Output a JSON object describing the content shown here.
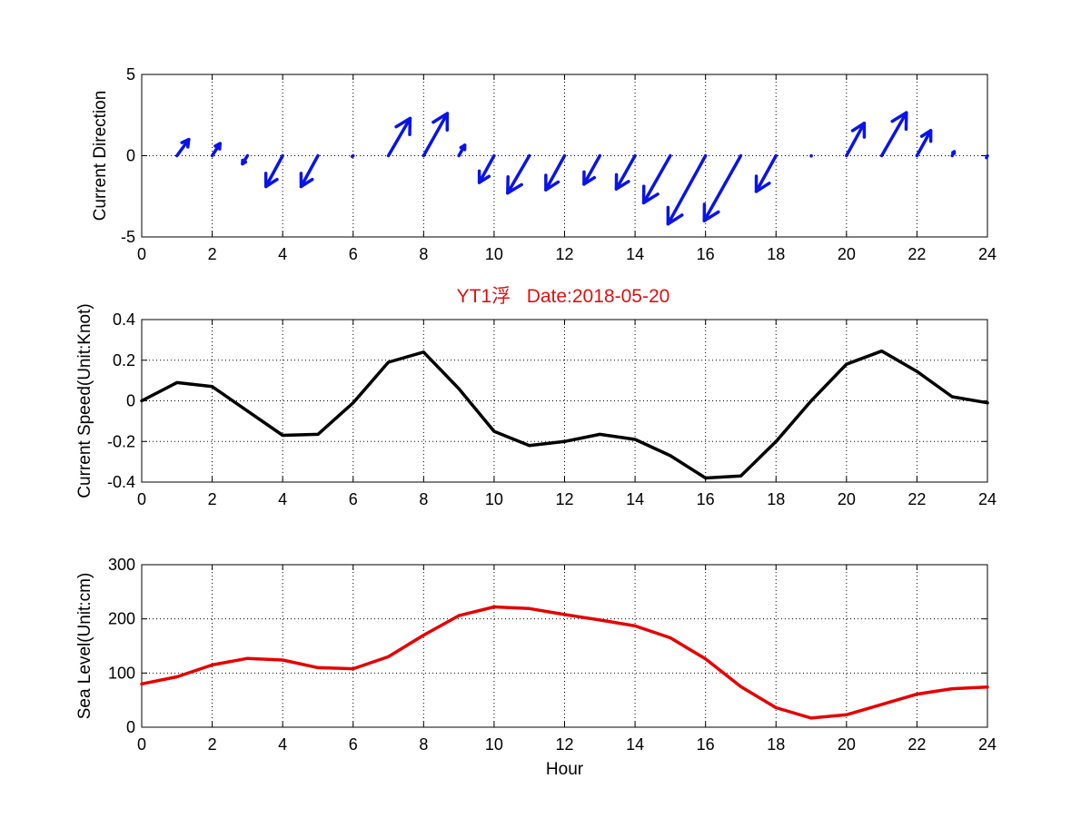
{
  "figure_title": "YT1浮   Date:2018-05-20",
  "colors": {
    "title": "#e01010",
    "quiver": "#0a14e6",
    "speed": "#000000",
    "sea_level": "#e60000"
  },
  "chart_data": [
    {
      "type": "quiver",
      "ylabel": "Current Direction",
      "xlabel": "",
      "xlim": [
        0,
        24
      ],
      "ylim": [
        -5,
        5
      ],
      "xticks": [
        0,
        2,
        4,
        6,
        8,
        10,
        12,
        14,
        16,
        18,
        20,
        22,
        24
      ],
      "yticks": [
        -5,
        0,
        5
      ],
      "grid": true,
      "x": [
        1,
        2,
        3,
        4,
        5,
        6,
        7,
        8,
        9,
        10,
        11,
        12,
        13,
        14,
        15,
        16,
        17,
        18,
        19,
        20,
        21,
        22,
        23,
        24
      ],
      "u": [
        0.12,
        0.08,
        -0.05,
        -0.17,
        -0.17,
        -0.01,
        0.22,
        0.24,
        0.06,
        -0.15,
        -0.22,
        -0.19,
        -0.16,
        -0.19,
        -0.27,
        -0.38,
        -0.37,
        -0.2,
        0.0,
        0.18,
        0.25,
        0.14,
        0.02,
        -0.01
      ],
      "v": [
        1.0,
        0.75,
        -0.5,
        -1.9,
        -1.9,
        -0.05,
        2.3,
        2.6,
        0.65,
        -1.65,
        -2.3,
        -2.1,
        -1.75,
        -2.05,
        -2.9,
        -4.2,
        -4.0,
        -2.2,
        -0.02,
        2.0,
        2.65,
        1.55,
        0.25,
        -0.12
      ]
    },
    {
      "type": "line",
      "ylabel": "Current Speed(Unit:Knot)",
      "xlabel": "",
      "xlim": [
        0,
        24
      ],
      "ylim": [
        -0.4,
        0.4
      ],
      "xticks": [
        0,
        2,
        4,
        6,
        8,
        10,
        12,
        14,
        16,
        18,
        20,
        22,
        24
      ],
      "yticks": [
        -0.4,
        -0.2,
        0,
        0.2,
        0.4
      ],
      "grid": true,
      "x": [
        0,
        1,
        2,
        3,
        4,
        5,
        6,
        7,
        8,
        9,
        10,
        11,
        12,
        13,
        14,
        15,
        16,
        17,
        18,
        19,
        20,
        21,
        22,
        23,
        24
      ],
      "y": [
        0.0,
        0.09,
        0.07,
        -0.05,
        -0.17,
        -0.165,
        -0.01,
        0.19,
        0.24,
        0.06,
        -0.15,
        -0.22,
        -0.2,
        -0.165,
        -0.19,
        -0.27,
        -0.38,
        -0.37,
        -0.2,
        0.0,
        0.18,
        0.245,
        0.145,
        0.02,
        -0.01
      ]
    },
    {
      "type": "line",
      "ylabel": "Sea Level(Unit:cm)",
      "xlabel": "Hour",
      "xlim": [
        0,
        24
      ],
      "ylim": [
        0,
        300
      ],
      "xticks": [
        0,
        2,
        4,
        6,
        8,
        10,
        12,
        14,
        16,
        18,
        20,
        22,
        24
      ],
      "yticks": [
        0,
        100,
        200,
        300
      ],
      "grid": true,
      "x": [
        0,
        1,
        2,
        3,
        4,
        5,
        6,
        7,
        8,
        9,
        10,
        11,
        12,
        13,
        14,
        15,
        16,
        17,
        18,
        19,
        20,
        21,
        22,
        23,
        24
      ],
      "y": [
        80,
        93,
        115,
        127,
        124,
        110,
        108,
        130,
        170,
        206,
        222,
        219,
        208,
        198,
        187,
        165,
        126,
        75,
        36,
        17,
        23,
        42,
        61,
        71,
        74
      ]
    }
  ]
}
